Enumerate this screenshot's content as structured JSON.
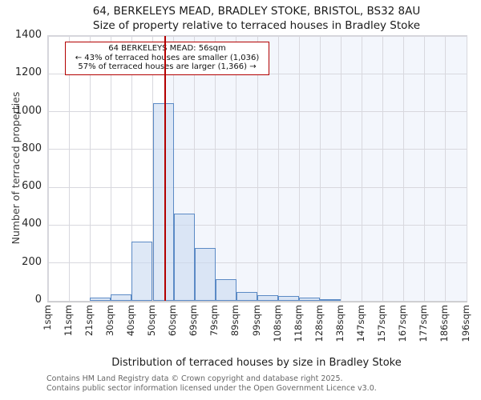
{
  "title": {
    "line1": "64, BERKELEYS MEAD, BRADLEY STOKE, BRISTOL, BS32 8AU",
    "line2": "Size of property relative to terraced houses in Bradley Stoke"
  },
  "annotation": {
    "line1": "64 BERKELEYS MEAD: 56sqm",
    "line2": "← 43% of terraced houses are smaller (1,036)",
    "line3": "57% of terraced houses are larger (1,366) →",
    "property_sqm": 56
  },
  "chart_data": {
    "type": "bar",
    "title": "64, BERKELEYS MEAD, BRADLEY STOKE, BRISTOL, BS32 8AU — Size of property relative to terraced houses in Bradley Stoke",
    "xlabel": "Distribution of terraced houses by size in Bradley Stoke",
    "ylabel": "Number of terraced properties",
    "tick_labels": [
      "1sqm",
      "11sqm",
      "21sqm",
      "30sqm",
      "40sqm",
      "50sqm",
      "60sqm",
      "69sqm",
      "79sqm",
      "89sqm",
      "99sqm",
      "108sqm",
      "118sqm",
      "128sqm",
      "138sqm",
      "147sqm",
      "157sqm",
      "167sqm",
      "177sqm",
      "186sqm",
      "196sqm"
    ],
    "bin_edges_sqm": [
      1,
      11,
      21,
      30,
      40,
      50,
      60,
      69,
      79,
      89,
      99,
      108,
      118,
      128,
      138,
      147,
      157,
      167,
      177,
      186,
      196
    ],
    "values": [
      0,
      0,
      15,
      36,
      315,
      1045,
      460,
      278,
      115,
      47,
      30,
      26,
      16,
      8,
      0,
      0,
      0,
      0,
      0,
      0
    ],
    "ylim": [
      0,
      1400
    ],
    "yticks": [
      0,
      200,
      400,
      600,
      800,
      1000,
      1200,
      1400
    ],
    "marker_value_sqm": 56,
    "grid": "on",
    "colors": {
      "bar_fill": "rgba(201,218,241,0.62)",
      "bar_border": "#5b8ac5",
      "marker_line": "#b30000",
      "annotation_border": "#b30000",
      "shade_right_of_marker": "#f3f6fc",
      "gridline": "#d8d8de"
    }
  },
  "footer": {
    "line1": "Contains HM Land Registry data © Crown copyright and database right 2025.",
    "line2": "Contains public sector information licensed under the Open Government Licence v3.0."
  }
}
